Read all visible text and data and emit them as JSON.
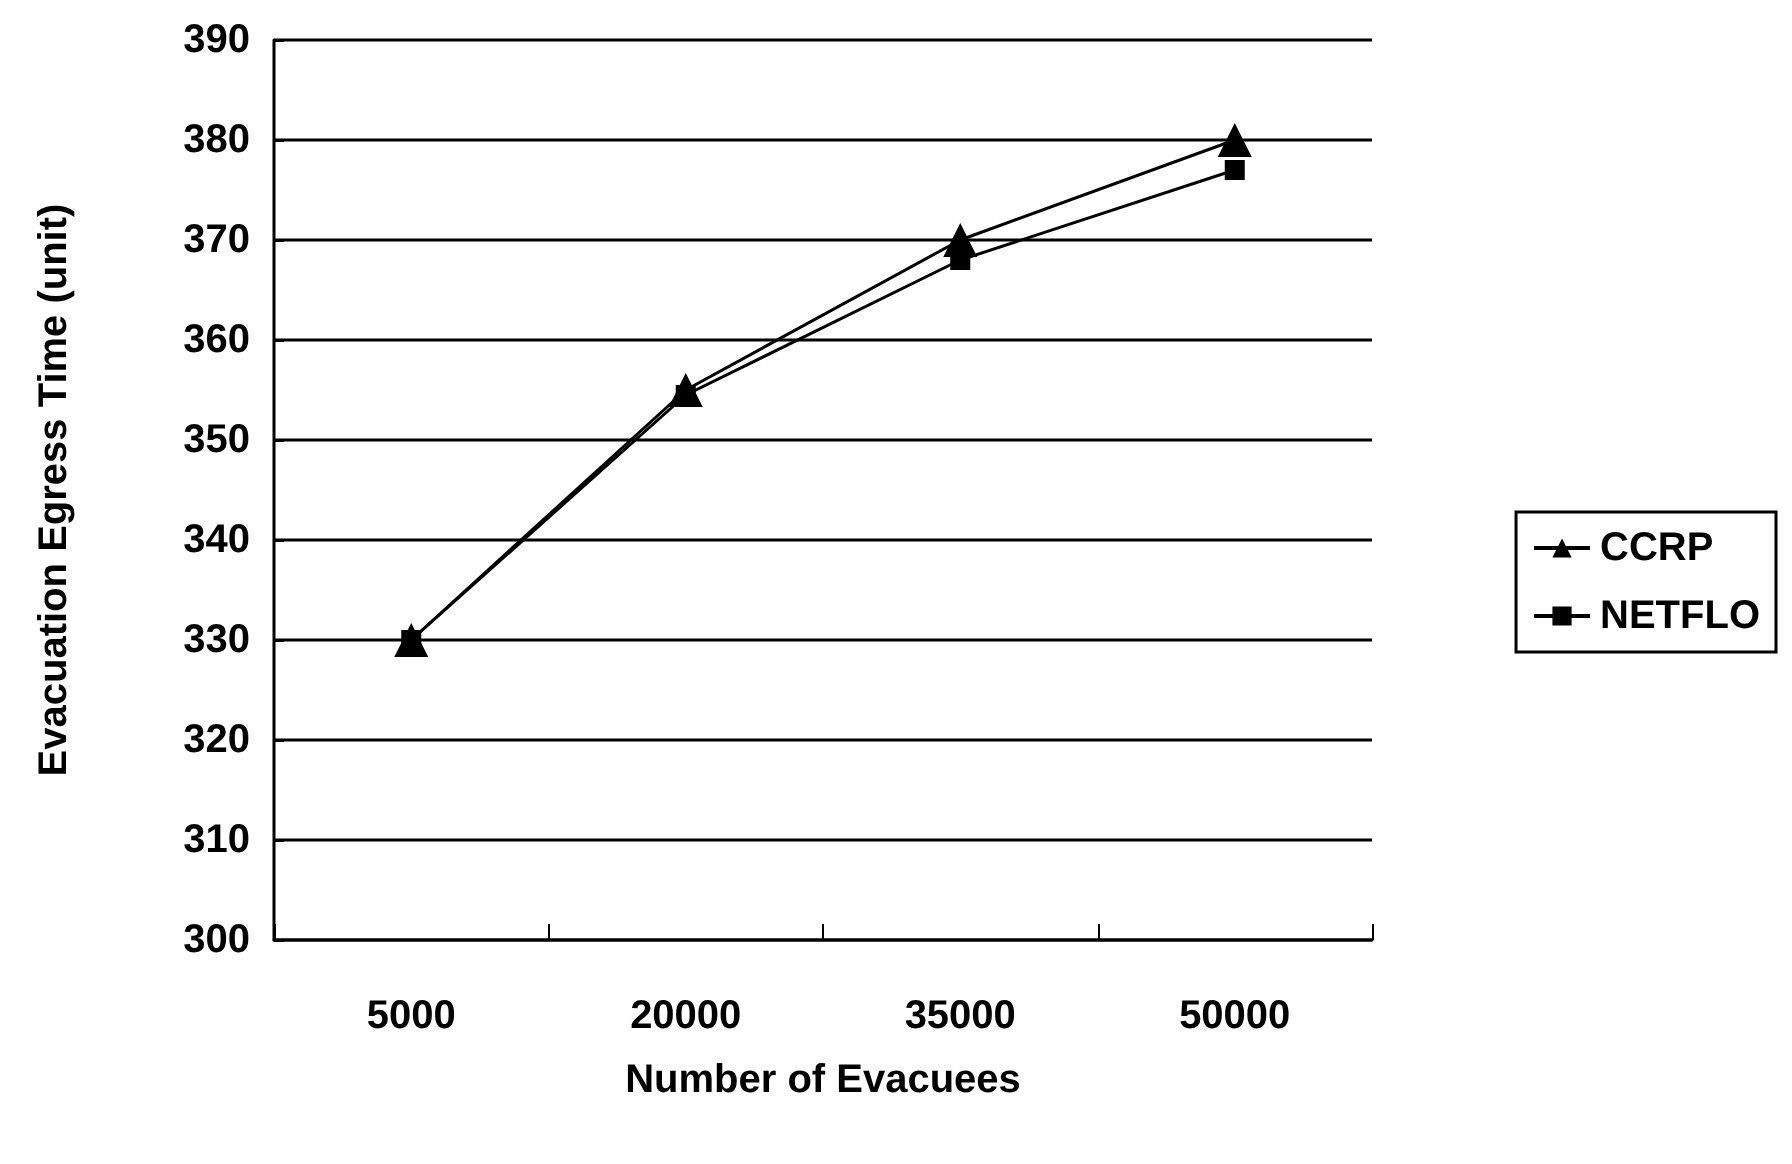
{
  "chart_data": {
    "type": "line",
    "xlabel": "Number of Evacuees",
    "ylabel": "Evacuation Egress Time (unit)",
    "categories": [
      "5000",
      "20000",
      "35000",
      "50000"
    ],
    "series": [
      {
        "name": "CCRP",
        "color": "#000000",
        "marker": "triangle",
        "values": [
          330,
          355,
          370,
          380
        ]
      },
      {
        "name": "NETFLO",
        "color": "#000000",
        "marker": "square",
        "values": [
          330,
          354.5,
          368,
          377
        ]
      }
    ],
    "ylim": [
      300,
      390
    ],
    "yticks": [
      300,
      310,
      320,
      330,
      340,
      350,
      360,
      370,
      380,
      390
    ],
    "grid": "y",
    "legend": "right",
    "line_style": "solid"
  }
}
